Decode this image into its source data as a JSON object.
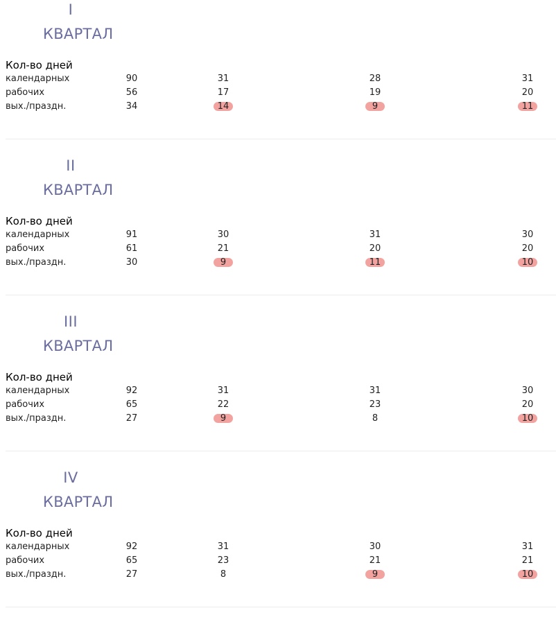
{
  "row_labels": {
    "days_title": "Кол-во дней",
    "calendar": "календарных",
    "working": "рабочих",
    "holidays": "вых./праздн."
  },
  "quarter_word": "КВАРТАЛ",
  "highlight_color": "#f2a3a0",
  "quarters": [
    {
      "numeral": "I",
      "calendar": [
        "90",
        "31",
        "28",
        "31"
      ],
      "working": [
        "56",
        "17",
        "19",
        "20"
      ],
      "holidays": [
        "34",
        "14",
        "9",
        "11"
      ],
      "holidays_highlighted": [
        false,
        true,
        true,
        true
      ]
    },
    {
      "numeral": "II",
      "calendar": [
        "91",
        "30",
        "31",
        "30"
      ],
      "working": [
        "61",
        "21",
        "20",
        "20"
      ],
      "holidays": [
        "30",
        "9",
        "11",
        "10"
      ],
      "holidays_highlighted": [
        false,
        true,
        true,
        true
      ]
    },
    {
      "numeral": "III",
      "calendar": [
        "92",
        "31",
        "31",
        "30"
      ],
      "working": [
        "65",
        "22",
        "23",
        "20"
      ],
      "holidays": [
        "27",
        "9",
        "8",
        "10"
      ],
      "holidays_highlighted": [
        false,
        true,
        false,
        true
      ]
    },
    {
      "numeral": "IV",
      "calendar": [
        "92",
        "31",
        "30",
        "31"
      ],
      "working": [
        "65",
        "23",
        "21",
        "21"
      ],
      "holidays": [
        "27",
        "8",
        "9",
        "10"
      ],
      "holidays_highlighted": [
        false,
        false,
        true,
        true
      ]
    }
  ]
}
